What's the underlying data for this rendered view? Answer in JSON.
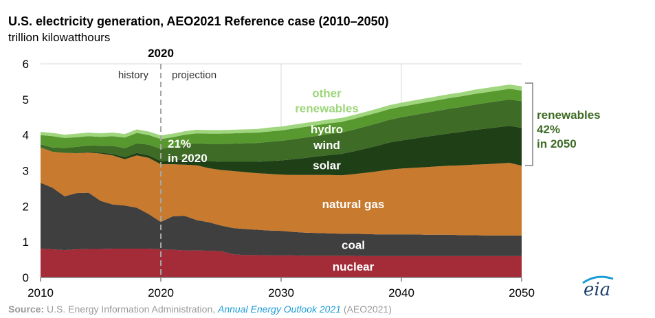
{
  "chart_data": {
    "type": "area",
    "title": "U.S. electricity generation, AEO2021 Reference case (2010–2050)",
    "subtitle": "trillion kilowatthours",
    "xlim": [
      2010,
      2050
    ],
    "ylim": [
      0,
      6
    ],
    "x_ticks": [
      "2010",
      "2020",
      "2030",
      "2040",
      "2050"
    ],
    "y_ticks": [
      "0",
      "1",
      "2",
      "3",
      "4",
      "5",
      "6"
    ],
    "divider": {
      "x": 2020,
      "label": "2020",
      "left": "history",
      "right": "projection"
    },
    "x": [
      2010,
      2011,
      2012,
      2013,
      2014,
      2015,
      2016,
      2017,
      2018,
      2019,
      2020,
      2021,
      2022,
      2023,
      2024,
      2025,
      2026,
      2027,
      2028,
      2029,
      2030,
      2031,
      2032,
      2033,
      2034,
      2035,
      2036,
      2037,
      2038,
      2039,
      2040,
      2041,
      2042,
      2043,
      2044,
      2045,
      2046,
      2047,
      2048,
      2049,
      2050
    ],
    "series": [
      {
        "name": "nuclear",
        "color": "#a32c38",
        "label_color": "#ffffff",
        "values": [
          0.81,
          0.79,
          0.77,
          0.79,
          0.8,
          0.8,
          0.81,
          0.81,
          0.81,
          0.81,
          0.79,
          0.78,
          0.76,
          0.76,
          0.75,
          0.74,
          0.65,
          0.63,
          0.63,
          0.62,
          0.62,
          0.62,
          0.61,
          0.61,
          0.61,
          0.61,
          0.61,
          0.6,
          0.6,
          0.6,
          0.6,
          0.6,
          0.6,
          0.6,
          0.6,
          0.6,
          0.6,
          0.6,
          0.6,
          0.6,
          0.6
        ]
      },
      {
        "name": "coal",
        "color": "#3f3f3f",
        "label_color": "#ffffff",
        "values": [
          1.85,
          1.73,
          1.51,
          1.58,
          1.58,
          1.35,
          1.24,
          1.21,
          1.15,
          0.97,
          0.77,
          0.94,
          0.97,
          0.85,
          0.8,
          0.72,
          0.74,
          0.73,
          0.71,
          0.7,
          0.69,
          0.66,
          0.65,
          0.64,
          0.63,
          0.62,
          0.62,
          0.62,
          0.61,
          0.61,
          0.61,
          0.61,
          0.6,
          0.6,
          0.6,
          0.59,
          0.59,
          0.58,
          0.58,
          0.58,
          0.58
        ]
      },
      {
        "name": "natural gas",
        "color": "#c87a2e",
        "label_color": "#ffffff",
        "values": [
          0.99,
          1.01,
          1.22,
          1.12,
          1.13,
          1.33,
          1.38,
          1.3,
          1.47,
          1.58,
          1.62,
          1.46,
          1.44,
          1.54,
          1.52,
          1.56,
          1.6,
          1.6,
          1.59,
          1.59,
          1.58,
          1.6,
          1.62,
          1.63,
          1.64,
          1.64,
          1.67,
          1.72,
          1.77,
          1.82,
          1.85,
          1.87,
          1.9,
          1.92,
          1.94,
          1.96,
          1.98,
          2.0,
          2.02,
          2.04,
          1.96
        ]
      },
      {
        "name": "solar",
        "color": "#1f3f16",
        "label_color": "#ffffff",
        "values": [
          0.0,
          0.0,
          0.0,
          0.01,
          0.02,
          0.03,
          0.04,
          0.06,
          0.07,
          0.07,
          0.09,
          0.11,
          0.14,
          0.17,
          0.2,
          0.23,
          0.26,
          0.29,
          0.32,
          0.36,
          0.4,
          0.44,
          0.48,
          0.52,
          0.56,
          0.6,
          0.64,
          0.68,
          0.72,
          0.76,
          0.79,
          0.82,
          0.85,
          0.88,
          0.91,
          0.94,
          0.97,
          1.0,
          1.02,
          1.04,
          1.06
        ]
      },
      {
        "name": "wind",
        "color": "#3e6b25",
        "label_color": "#ffffff",
        "values": [
          0.09,
          0.12,
          0.14,
          0.17,
          0.18,
          0.19,
          0.23,
          0.25,
          0.27,
          0.3,
          0.34,
          0.38,
          0.42,
          0.45,
          0.48,
          0.5,
          0.51,
          0.52,
          0.53,
          0.54,
          0.55,
          0.56,
          0.57,
          0.58,
          0.59,
          0.6,
          0.61,
          0.62,
          0.63,
          0.64,
          0.65,
          0.66,
          0.67,
          0.68,
          0.69,
          0.7,
          0.71,
          0.72,
          0.73,
          0.74,
          0.75
        ]
      },
      {
        "name": "hydro",
        "color": "#58992f",
        "label_color": "#ffffff",
        "values": [
          0.26,
          0.32,
          0.28,
          0.27,
          0.26,
          0.25,
          0.27,
          0.3,
          0.29,
          0.27,
          0.28,
          0.27,
          0.28,
          0.28,
          0.29,
          0.29,
          0.29,
          0.29,
          0.29,
          0.29,
          0.29,
          0.3,
          0.3,
          0.3,
          0.3,
          0.3,
          0.3,
          0.3,
          0.3,
          0.3,
          0.3,
          0.3,
          0.3,
          0.3,
          0.3,
          0.3,
          0.3,
          0.3,
          0.3,
          0.3,
          0.3
        ]
      },
      {
        "name": "other\nrenewables",
        "color": "#9fd67d",
        "label_color": "#9fd67d",
        "values": [
          0.09,
          0.09,
          0.09,
          0.1,
          0.1,
          0.1,
          0.1,
          0.1,
          0.1,
          0.1,
          0.1,
          0.1,
          0.1,
          0.1,
          0.1,
          0.1,
          0.1,
          0.1,
          0.1,
          0.11,
          0.11,
          0.11,
          0.11,
          0.11,
          0.11,
          0.11,
          0.11,
          0.11,
          0.11,
          0.11,
          0.11,
          0.11,
          0.11,
          0.11,
          0.11,
          0.11,
          0.12,
          0.12,
          0.12,
          0.12,
          0.12
        ]
      }
    ],
    "annotations": {
      "share_2020": "21%\nin 2020",
      "renewables_2050": "renewables\n42%\nin 2050",
      "share_color": "#3e6b25"
    },
    "grid": true,
    "legend": "none (direct labels)"
  },
  "source": {
    "prefix": "Source:",
    "text": " U.S. Energy Information Administration, ",
    "link": "Annual Energy Outlook 2021",
    "suffix": " (AEO2021)",
    "link_color": "#1b9bd7"
  },
  "logo": {
    "text": "eia",
    "color": "#1d3f6e"
  }
}
